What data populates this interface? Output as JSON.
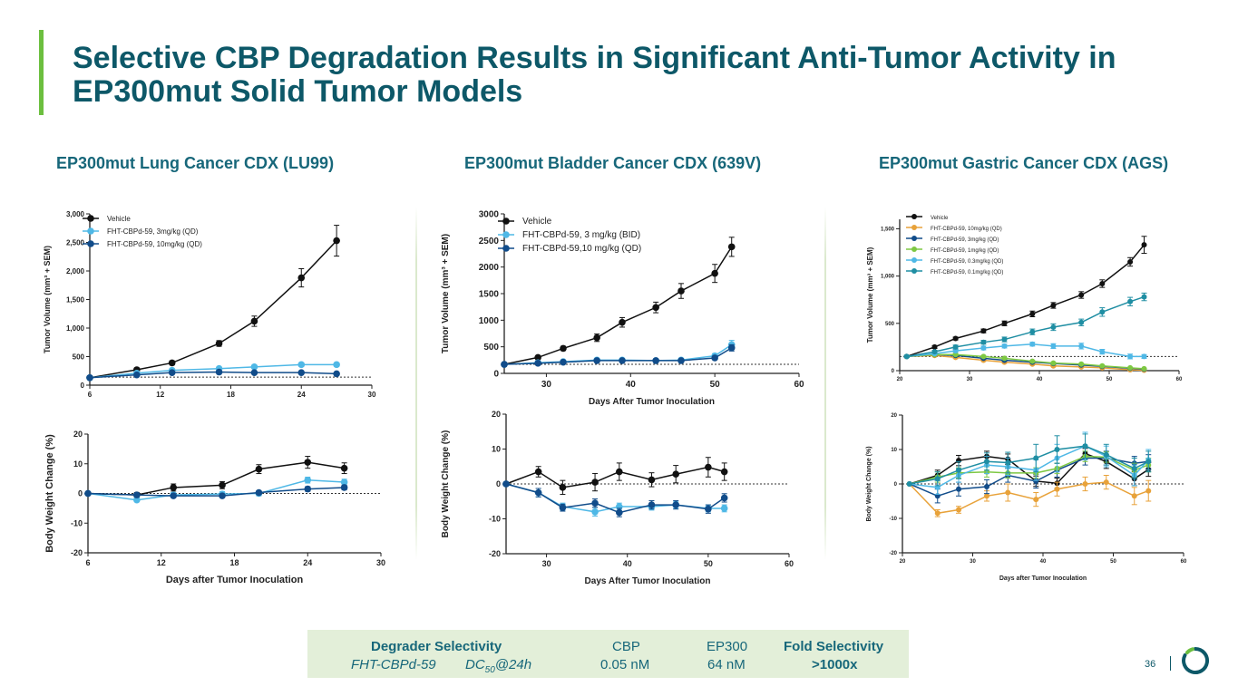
{
  "slide": {
    "title": "Selective CBP Degradation Results in Significant Anti-Tumor Activity in EP300mut Solid Tumor Models",
    "page_number": "36",
    "logo": "logo-icon"
  },
  "panels": [
    {
      "title": "EP300mut Lung Cancer CDX (LU99)"
    },
    {
      "title": "EP300mut Bladder Cancer CDX (639V)"
    },
    {
      "title": "EP300mut Gastric Cancer CDX (AGS)"
    }
  ],
  "selectivity": {
    "heading": "Degrader Selectivity",
    "compound": "FHT-CBPd-59",
    "metric": "DC50@24h",
    "metric_prefix": "DC",
    "metric_sub": "50",
    "metric_suffix": "@24h",
    "cbp_label": "CBP",
    "cbp_value": "0.05 nM",
    "ep300_label": "EP300",
    "ep300_value": "64 nM",
    "fold_label": "Fold Selectivity",
    "fold_value": ">1000x"
  },
  "colors": {
    "title": "#0d5868",
    "accent": "#6cbf3f",
    "vehicle": "#111111",
    "light_blue": "#4fb8e6",
    "dark_blue": "#114c8a",
    "orange": "#e8a23a",
    "green": "#7ec843",
    "teal": "#1f8ea3"
  },
  "chart_data": [
    {
      "id": "lu99_tumor",
      "type": "line",
      "title": "",
      "xlabel": "",
      "ylabel": "Tumor Volume (mm³ + SEM)",
      "xlim": [
        6,
        30
      ],
      "ylim": [
        0,
        3000
      ],
      "xticks": [
        6,
        12,
        18,
        24,
        30
      ],
      "yticks": [
        0,
        500,
        1000,
        1500,
        2000,
        2500,
        3000
      ],
      "ytick_labels": [
        "0",
        "500",
        "1,000",
        "1,500",
        "2,000",
        "2,500",
        "3,000"
      ],
      "baseline": 140,
      "series": [
        {
          "name": "Vehicle",
          "color": "#111111",
          "x": [
            6,
            10,
            13,
            17,
            20,
            24,
            27
          ],
          "y": [
            130,
            270,
            390,
            730,
            1120,
            1880,
            2530
          ],
          "err": [
            15,
            30,
            35,
            50,
            90,
            160,
            270
          ]
        },
        {
          "name": "FHT-CBPd-59, 3mg/kg (QD)",
          "color": "#4fb8e6",
          "x": [
            6,
            10,
            13,
            17,
            20,
            24,
            27
          ],
          "y": [
            130,
            210,
            260,
            290,
            320,
            360,
            360
          ],
          "err": [
            10,
            20,
            20,
            25,
            25,
            30,
            30
          ]
        },
        {
          "name": "FHT-CBPd-59, 10mg/kg (QD)",
          "color": "#114c8a",
          "x": [
            6,
            10,
            13,
            17,
            20,
            24,
            27
          ],
          "y": [
            130,
            180,
            220,
            230,
            220,
            220,
            200
          ],
          "err": [
            10,
            15,
            20,
            20,
            20,
            20,
            20
          ]
        }
      ]
    },
    {
      "id": "lu99_bw",
      "type": "line",
      "title": "",
      "xlabel": "Days after Tumor Inoculation",
      "ylabel": "Body Weight Change (%)",
      "xlim": [
        6,
        30
      ],
      "ylim": [
        -20,
        20
      ],
      "xticks": [
        6,
        12,
        18,
        24,
        30
      ],
      "yticks": [
        -20,
        -10,
        0,
        10,
        20
      ],
      "baseline": 0,
      "series": [
        {
          "name": "Vehicle",
          "color": "#111111",
          "x": [
            6,
            10,
            13,
            17,
            20,
            24,
            27
          ],
          "y": [
            0,
            -0.5,
            2,
            2.8,
            8.2,
            10.5,
            8.5
          ],
          "err": [
            0,
            0.8,
            1.2,
            1.2,
            1.5,
            2,
            1.8
          ]
        },
        {
          "name": "3mg/kg",
          "color": "#4fb8e6",
          "x": [
            6,
            10,
            13,
            17,
            20,
            24,
            27
          ],
          "y": [
            0,
            -2.2,
            -0.5,
            -0.2,
            0,
            4.5,
            3.8
          ],
          "err": [
            0,
            0.6,
            0.8,
            0.8,
            0.8,
            1,
            1
          ]
        },
        {
          "name": "10mg/kg",
          "color": "#114c8a",
          "x": [
            6,
            10,
            13,
            17,
            20,
            24,
            27
          ],
          "y": [
            0,
            -0.5,
            -0.8,
            -0.8,
            0.3,
            1.5,
            2
          ],
          "err": [
            0,
            0.6,
            0.6,
            0.6,
            0.6,
            0.8,
            0.8
          ]
        }
      ]
    },
    {
      "id": "639v_tumor",
      "type": "line",
      "title": "",
      "xlabel": "Days After Tumor Inoculation",
      "ylabel": "Tumor Volume (mm³ + SEM)",
      "xlim": [
        25,
        60
      ],
      "ylim": [
        0,
        3000
      ],
      "xticks": [
        30,
        40,
        50,
        60
      ],
      "yticks": [
        0,
        500,
        1000,
        1500,
        2000,
        2500,
        3000
      ],
      "ytick_labels": [
        "0",
        "500",
        "1000",
        "1500",
        "2000",
        "2500",
        "3000"
      ],
      "baseline": 170,
      "series": [
        {
          "name": "Vehicle",
          "color": "#111111",
          "x": [
            25,
            29,
            32,
            36,
            39,
            43,
            46,
            50,
            52
          ],
          "y": [
            170,
            300,
            470,
            670,
            960,
            1240,
            1550,
            1880,
            2380
          ],
          "err": [
            10,
            25,
            40,
            70,
            90,
            100,
            140,
            170,
            180
          ]
        },
        {
          "name": "FHT-CBPd-59, 3 mg/kg (BID)",
          "color": "#4fb8e6",
          "x": [
            25,
            29,
            32,
            36,
            39,
            43,
            46,
            50,
            52
          ],
          "y": [
            170,
            200,
            220,
            250,
            250,
            240,
            250,
            330,
            540
          ],
          "err": [
            10,
            15,
            20,
            20,
            20,
            20,
            20,
            40,
            80
          ]
        },
        {
          "name": "FHT-CBPd-59,10 mg/kg (QD)",
          "color": "#114c8a",
          "x": [
            25,
            29,
            32,
            36,
            39,
            43,
            46,
            50,
            52
          ],
          "y": [
            170,
            190,
            210,
            240,
            240,
            240,
            240,
            290,
            480
          ],
          "err": [
            10,
            15,
            15,
            20,
            20,
            20,
            20,
            30,
            60
          ]
        }
      ]
    },
    {
      "id": "639v_bw",
      "type": "line",
      "title": "",
      "xlabel": "Days After Tumor Inoculation",
      "ylabel": "Body Weight Change (%)",
      "xlim": [
        25,
        60
      ],
      "ylim": [
        -20,
        20
      ],
      "xticks": [
        30,
        40,
        50,
        60
      ],
      "yticks": [
        -20,
        -10,
        0,
        10,
        20
      ],
      "baseline": 0,
      "series": [
        {
          "name": "Vehicle",
          "color": "#111111",
          "x": [
            25,
            29,
            32,
            36,
            39,
            43,
            46,
            50,
            52
          ],
          "y": [
            0,
            3.5,
            -1,
            0.5,
            3.5,
            1.2,
            2.8,
            4.8,
            3.5
          ],
          "err": [
            0,
            1.5,
            2,
            2.5,
            2.5,
            2,
            2.5,
            2.8,
            2.5
          ]
        },
        {
          "name": "3 mg/kg (BID)",
          "color": "#4fb8e6",
          "x": [
            25,
            29,
            32,
            36,
            39,
            43,
            46,
            50,
            52
          ],
          "y": [
            0,
            -2.5,
            -6.5,
            -8,
            -6.5,
            -6.5,
            -6,
            -7,
            -7
          ],
          "err": [
            0,
            1.2,
            1,
            1.2,
            1,
            1,
            1,
            1,
            1
          ]
        },
        {
          "name": "10 mg/kg (QD)",
          "color": "#114c8a",
          "x": [
            25,
            29,
            32,
            36,
            39,
            43,
            46,
            50,
            52
          ],
          "y": [
            0,
            -2.5,
            -6.8,
            -5.5,
            -8.2,
            -6,
            -6,
            -7.2,
            -4
          ],
          "err": [
            0,
            1.2,
            1,
            1.2,
            1.2,
            1.2,
            1.2,
            1.2,
            1.2
          ]
        }
      ]
    },
    {
      "id": "ags_tumor",
      "type": "line",
      "title": "",
      "xlabel": "",
      "ylabel": "Tumor Volume (mm³ + SEM)",
      "xlim": [
        20,
        60
      ],
      "ylim": [
        0,
        1600
      ],
      "xticks": [
        20,
        30,
        40,
        50,
        60
      ],
      "yticks": [
        0,
        500,
        1000,
        1500
      ],
      "ytick_labels": [
        "0",
        "500",
        "1,000",
        "1,500"
      ],
      "baseline": 150,
      "series": [
        {
          "name": "Vehicle",
          "color": "#111111",
          "x": [
            21,
            25,
            28,
            32,
            35,
            39,
            42,
            46,
            49,
            53,
            55
          ],
          "y": [
            150,
            250,
            340,
            420,
            500,
            600,
            690,
            800,
            920,
            1150,
            1330
          ],
          "err": [
            10,
            15,
            15,
            20,
            25,
            30,
            30,
            35,
            40,
            45,
            90
          ]
        },
        {
          "name": "FHT-CBPd-59, 10mg/kg (QD)",
          "color": "#e8a23a",
          "x": [
            21,
            25,
            28,
            32,
            35,
            39,
            42,
            46,
            49,
            53,
            55
          ],
          "y": [
            150,
            160,
            140,
            110,
            90,
            70,
            50,
            40,
            30,
            10,
            5
          ],
          "err": [
            10,
            10,
            10,
            10,
            10,
            8,
            8,
            6,
            6,
            4,
            4
          ]
        },
        {
          "name": "FHT-CBPd-59, 3mg/kg (QD)",
          "color": "#114c8a",
          "x": [
            21,
            25,
            28,
            32,
            35,
            39,
            42,
            46,
            49,
            53,
            55
          ],
          "y": [
            150,
            170,
            160,
            130,
            110,
            90,
            75,
            60,
            45,
            25,
            15
          ],
          "err": [
            10,
            10,
            10,
            10,
            10,
            8,
            8,
            6,
            6,
            4,
            4
          ]
        },
        {
          "name": "FHT-CBPd-59, 1mg/kg (QD)",
          "color": "#7ec843",
          "x": [
            21,
            25,
            28,
            32,
            35,
            39,
            42,
            46,
            49,
            53,
            55
          ],
          "y": [
            150,
            170,
            170,
            150,
            130,
            100,
            80,
            70,
            50,
            30,
            20
          ],
          "err": [
            10,
            10,
            10,
            10,
            10,
            8,
            8,
            6,
            6,
            4,
            4
          ]
        },
        {
          "name": "FHT-CBPd-59, 0.3mg/kg (QD)",
          "color": "#4fb8e6",
          "x": [
            21,
            25,
            28,
            32,
            35,
            39,
            42,
            46,
            49,
            53,
            55
          ],
          "y": [
            150,
            180,
            210,
            240,
            260,
            280,
            260,
            260,
            200,
            150,
            150
          ],
          "err": [
            10,
            12,
            15,
            20,
            20,
            20,
            25,
            30,
            25,
            25,
            20
          ]
        },
        {
          "name": "FHT-CBPd-59, 0.1mg/kg (QD)",
          "color": "#1f8ea3",
          "x": [
            21,
            25,
            28,
            32,
            35,
            39,
            42,
            46,
            49,
            53,
            55
          ],
          "y": [
            150,
            200,
            250,
            300,
            330,
            410,
            460,
            510,
            620,
            730,
            780
          ],
          "err": [
            10,
            15,
            20,
            20,
            25,
            30,
            35,
            35,
            45,
            45,
            40
          ]
        }
      ],
      "legend": [
        "Vehicle",
        "FHT-CBPd-59, 10mg/kg (QD)",
        "FHT-CBPd-59, 3mg/kg (QD)",
        "FHT-CBPd-59, 1mg/kg (QD)",
        "FHT-CBPd-59, 0.3mg/kg (QD)",
        "FHT-CBPd-59, 0.1mg/kg (QD)"
      ]
    },
    {
      "id": "ags_bw",
      "type": "line",
      "title": "",
      "xlabel": "Days after Tumor Inoculation",
      "ylabel": "Body Weight Change (%)",
      "xlim": [
        20,
        60
      ],
      "ylim": [
        -20,
        20
      ],
      "xticks": [
        20,
        30,
        40,
        50,
        60
      ],
      "yticks": [
        -20,
        -10,
        0,
        10,
        20
      ],
      "baseline": 0,
      "series": [
        {
          "name": "Vehicle",
          "color": "#111111",
          "x": [
            21,
            25,
            28,
            32,
            35,
            39,
            42,
            46,
            49,
            53,
            55
          ],
          "y": [
            0,
            2.5,
            6.8,
            8,
            7.2,
            0.8,
            0.2,
            8.8,
            6.5,
            1.5,
            4.2
          ],
          "err": [
            0,
            1.5,
            1.5,
            1.5,
            1.5,
            1.5,
            1.5,
            1.5,
            2,
            2,
            2
          ]
        },
        {
          "name": "10mg/kg",
          "color": "#e8a23a",
          "x": [
            21,
            25,
            28,
            32,
            35,
            39,
            42,
            46,
            49,
            53,
            55
          ],
          "y": [
            0,
            -8.5,
            -7.5,
            -3.5,
            -2.5,
            -4.5,
            -1.5,
            0,
            0.5,
            -3.5,
            -2
          ],
          "err": [
            0,
            1,
            1,
            1.5,
            2.5,
            2,
            2,
            2,
            2,
            2.5,
            3
          ]
        },
        {
          "name": "3mg/kg",
          "color": "#114c8a",
          "x": [
            21,
            25,
            28,
            32,
            35,
            39,
            42,
            46,
            49,
            53,
            55
          ],
          "y": [
            0,
            -3.5,
            -1.5,
            -0.8,
            2.5,
            0.8,
            4,
            7.5,
            7.5,
            6,
            6.5
          ],
          "err": [
            0,
            2,
            2,
            2,
            2,
            2,
            2,
            2,
            2,
            2,
            2
          ]
        },
        {
          "name": "1mg/kg",
          "color": "#7ec843",
          "x": [
            21,
            25,
            28,
            32,
            35,
            39,
            42,
            46,
            49,
            53,
            55
          ],
          "y": [
            0,
            2,
            3.2,
            3.5,
            3.2,
            3.2,
            4.5,
            8,
            7.8,
            4,
            5.5
          ],
          "err": [
            0,
            1.5,
            1.5,
            1.5,
            1.5,
            1.5,
            1.5,
            1.5,
            1.5,
            2,
            2
          ]
        },
        {
          "name": "0.3mg/kg",
          "color": "#4fb8e6",
          "x": [
            21,
            25,
            28,
            32,
            35,
            39,
            42,
            46,
            49,
            53,
            55
          ],
          "y": [
            0,
            -1,
            2.5,
            5.5,
            5,
            4,
            7.5,
            11,
            8,
            2.5,
            7
          ],
          "err": [
            0,
            2,
            2,
            2.5,
            2.5,
            3,
            4,
            4,
            3,
            3,
            3
          ]
        },
        {
          "name": "0.1mg/kg",
          "color": "#1f8ea3",
          "x": [
            21,
            25,
            28,
            32,
            35,
            39,
            42,
            46,
            49,
            53,
            55
          ],
          "y": [
            0,
            1.5,
            4,
            6.5,
            6.2,
            7.5,
            10,
            11,
            8.5,
            4.5,
            6.5
          ],
          "err": [
            0,
            2,
            2.5,
            2.5,
            3,
            4,
            4,
            3.5,
            3,
            3,
            3
          ]
        }
      ]
    }
  ]
}
